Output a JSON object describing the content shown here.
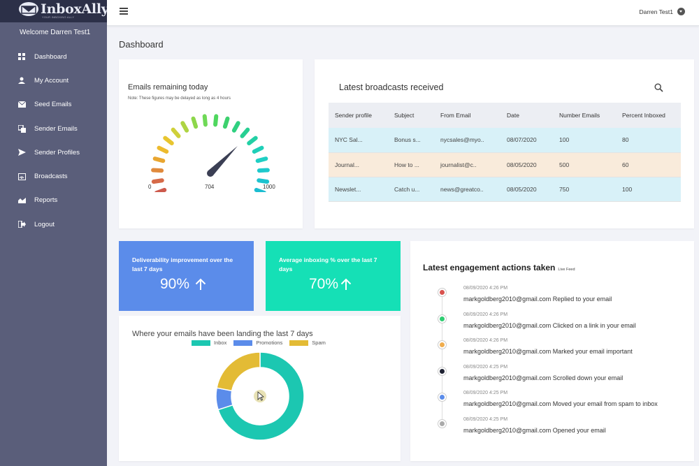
{
  "brand": {
    "name": "InboxAlly",
    "tagline": "YOUR INBOXING ALLY"
  },
  "sidebar": {
    "welcome": "Welcome Darren Test1",
    "items": [
      {
        "label": "Dashboard",
        "icon": "dashboard-icon"
      },
      {
        "label": "My Account",
        "icon": "user-icon"
      },
      {
        "label": "Seed Emails",
        "icon": "envelope-icon"
      },
      {
        "label": "Sender Emails",
        "icon": "copy-icon"
      },
      {
        "label": "Sender Profiles",
        "icon": "send-icon"
      },
      {
        "label": "Broadcasts",
        "icon": "broadcast-icon"
      },
      {
        "label": "Reports",
        "icon": "chart-area-icon"
      },
      {
        "label": "Logout",
        "icon": "logout-icon"
      }
    ]
  },
  "topbar": {
    "user_name": "Darren Test1"
  },
  "page": {
    "title": "Dashboard"
  },
  "gauge": {
    "title": "Emails remaining today",
    "note": "Note: These figures may be delayed as long as 4 hours",
    "min": "0",
    "value": "704",
    "max": "1000",
    "value_number": 704,
    "max_number": 1000
  },
  "broadcasts": {
    "title": "Latest broadcasts received",
    "columns": [
      "Sender profile",
      "Subject",
      "From Email",
      "Date",
      "Number Emails",
      "Percent Inboxed"
    ],
    "rows": [
      [
        "NYC Sal...",
        "Bonus s...",
        "nycsales@myo..",
        "08/07/2020",
        "100",
        "80"
      ],
      [
        "Journal...",
        "How to ...",
        "journalist@c..",
        "08/05/2020",
        "500",
        "60"
      ],
      [
        "Newslet...",
        "Catch u...",
        "news@greatco..",
        "08/05/2020",
        "750",
        "100"
      ]
    ]
  },
  "stats": {
    "deliverability_label": "Deliverability improvement over the last 7 days",
    "deliverability_value": "90%",
    "inboxing_label": "Average inboxing % over the last 7 days",
    "inboxing_value": "70%"
  },
  "landing": {
    "title": "Where your emails have been landing the last 7 days",
    "legend": [
      "Inbox",
      "Promotions",
      "Spam"
    ]
  },
  "chart_data": {
    "type": "pie",
    "categories": [
      "Inbox",
      "Promotions",
      "Spam"
    ],
    "values": [
      70,
      8,
      22
    ],
    "colors": [
      "#1cc7b1",
      "#5b8cea",
      "#e3bb35"
    ]
  },
  "engagement": {
    "title": "Latest engagement actions taken",
    "live": "Live Feed",
    "items": [
      {
        "time": "08/09/2020 4:26 PM",
        "text": "markgoldberg2010@gmail.com Replied to your email",
        "color": "#d9534f"
      },
      {
        "time": "08/09/2020 4:26 PM",
        "text": "markgoldberg2010@gmail.com Clicked on a link in your email",
        "color": "#2ecc71"
      },
      {
        "time": "08/09/2020 4:26 PM",
        "text": "markgoldberg2010@gmail.com Marked your email important",
        "color": "#f0ad4e"
      },
      {
        "time": "08/09/2020 4:25 PM",
        "text": "markgoldberg2010@gmail.com Scrolled down your email",
        "color": "#1f2233"
      },
      {
        "time": "08/09/2020 4:25 PM",
        "text": "markgoldberg2010@gmail.com Moved your email from spam to inbox",
        "color": "#5b8cea"
      },
      {
        "time": "08/09/2020 4:25 PM",
        "text": "markgoldberg2010@gmail.com Opened your email",
        "color": "#aaaaaa"
      }
    ]
  }
}
